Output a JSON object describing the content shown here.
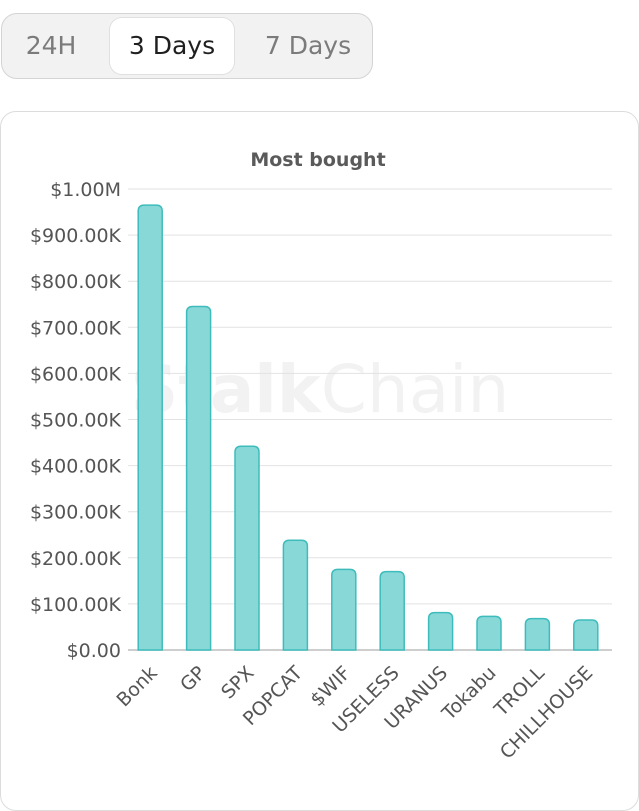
{
  "tabs": [
    {
      "label": "24H",
      "selected": false
    },
    {
      "label": "3 Days",
      "selected": true
    },
    {
      "label": "7 Days",
      "selected": false
    }
  ],
  "watermark": {
    "bold": "Stalk",
    "light": "Chain"
  },
  "colors": {
    "bar_fill": "#88d8d8",
    "bar_stroke": "#3ebcbc",
    "grid": "#e2e2e2",
    "axis": "#bdbdbd"
  },
  "chart_data": {
    "type": "bar",
    "title": "Most bought",
    "xlabel": "",
    "ylabel": "",
    "categories": [
      "Bonk",
      "GP",
      "SPX",
      "POPCAT",
      "$WIF",
      "USELESS",
      "URANUS",
      "Tokabu",
      "TROLL",
      "CHILLHOUSE"
    ],
    "values": [
      965000,
      745000,
      442000,
      238000,
      175000,
      170000,
      81000,
      73000,
      68000,
      65000
    ],
    "ylim": [
      0,
      1000000
    ],
    "yticks": [
      0,
      100000,
      200000,
      300000,
      400000,
      500000,
      600000,
      700000,
      800000,
      900000,
      1000000
    ],
    "ytick_labels": [
      "$0.00",
      "$100.00K",
      "$200.00K",
      "$300.00K",
      "$400.00K",
      "$500.00K",
      "$600.00K",
      "$700.00K",
      "$800.00K",
      "$900.00K",
      "$1.00M"
    ],
    "grid": true,
    "legend": "none"
  }
}
